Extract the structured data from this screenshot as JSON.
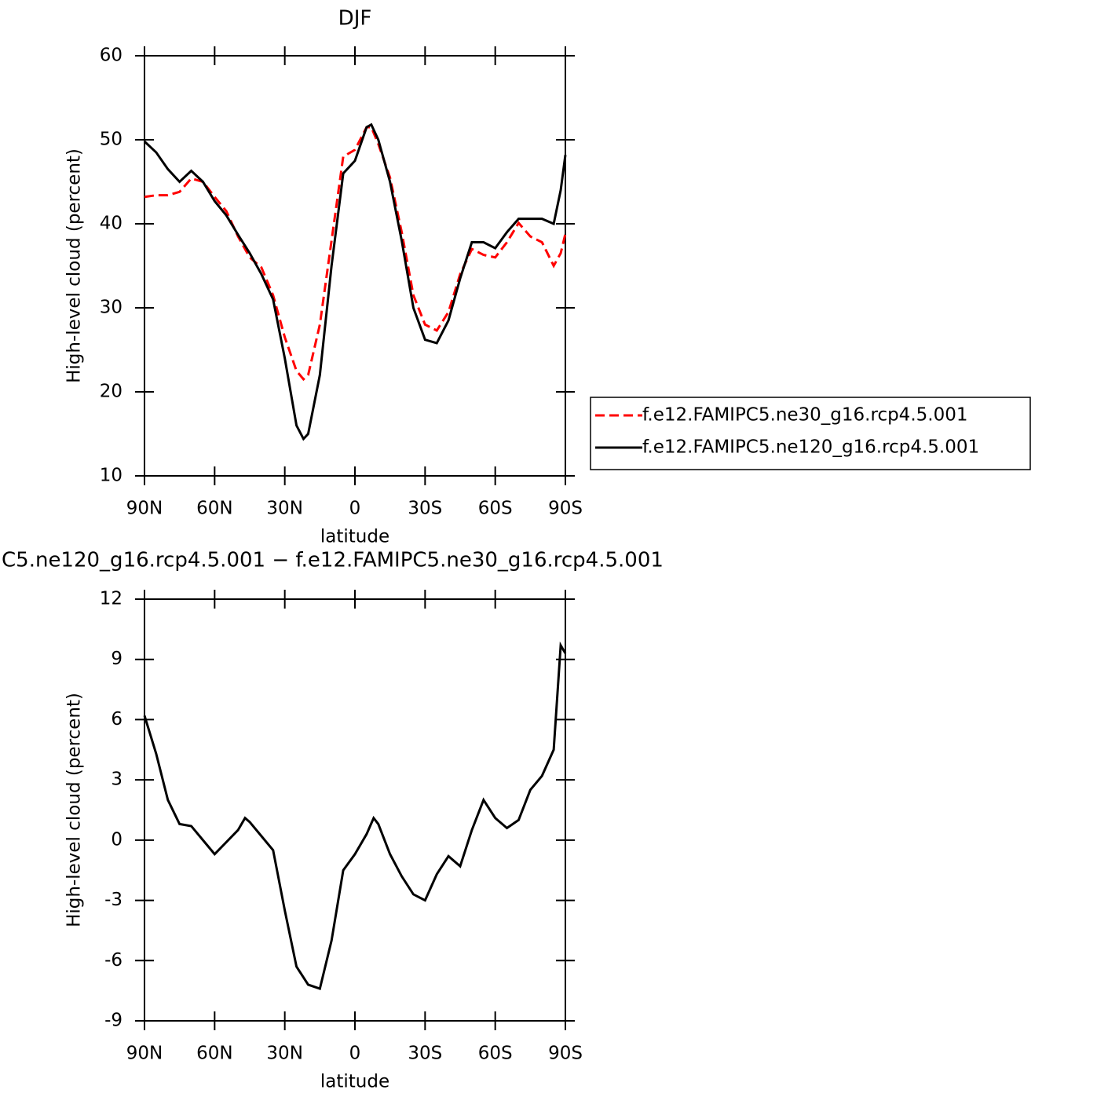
{
  "chart_data": [
    {
      "type": "line",
      "title": "DJF",
      "x_label": "latitude",
      "y_label": "High-level cloud (percent)",
      "x": [
        90,
        85,
        80,
        75,
        70,
        65,
        60,
        55,
        50,
        45,
        40,
        35,
        30,
        25,
        22,
        20,
        15,
        10,
        5,
        0,
        -5,
        -7,
        -10,
        -15,
        -20,
        -25,
        -30,
        -35,
        -40,
        -45,
        -50,
        -55,
        -60,
        -65,
        -70,
        -75,
        -80,
        -85,
        -88,
        -90
      ],
      "series": [
        {
          "name": "f.e12.FAMIPC5.ne30_g16.rcp4.5.001",
          "color": "#ff0000",
          "style": "dashed",
          "values": [
            43.2,
            43.4,
            43.4,
            43.8,
            45.4,
            45,
            43.2,
            41.5,
            38.5,
            36,
            34.8,
            31.5,
            26.5,
            22.5,
            21.5,
            22,
            28,
            38,
            48,
            48.8,
            51.5,
            51.5,
            49.5,
            45.5,
            39,
            31.5,
            28,
            27.3,
            29.5,
            34,
            37,
            36.3,
            36,
            37.8,
            40.1,
            38.5,
            37.8,
            35,
            36.5,
            38.8
          ]
        },
        {
          "name": "f.e12.FAMIPC5.ne120_g16.rcp4.5.001",
          "color": "#000000",
          "style": "solid",
          "values": [
            49.8,
            48.5,
            46.5,
            45,
            46.3,
            45,
            42.7,
            41,
            38.7,
            36.5,
            34,
            31,
            24,
            16,
            14.4,
            15,
            22,
            35,
            46,
            47.5,
            51.5,
            51.8,
            50,
            45,
            38,
            30,
            26.2,
            25.8,
            28.5,
            33.5,
            37.8,
            37.8,
            37.1,
            39,
            40.6,
            40.6,
            40.6,
            40,
            44,
            48.2
          ]
        }
      ],
      "xlim": [
        90,
        -90
      ],
      "xticks": [
        {
          "value": 90,
          "label": "90N"
        },
        {
          "value": 60,
          "label": "60N"
        },
        {
          "value": 30,
          "label": "30N"
        },
        0,
        {
          "value": -30,
          "label": "30S"
        },
        {
          "value": -60,
          "label": "60S"
        },
        {
          "value": -90,
          "label": "90S"
        }
      ],
      "ylim": [
        10,
        60
      ],
      "yticks": [
        10,
        20,
        30,
        40,
        50,
        60
      ],
      "legend": "right"
    },
    {
      "type": "line",
      "title": "C5.ne120_g16.rcp4.5.001 − f.e12.FAMIPC5.ne30_g16.rcp4.5.001",
      "x_label": "latitude",
      "y_label": "High-level cloud (percent)",
      "x": [
        90,
        85,
        80,
        75,
        70,
        65,
        60,
        55,
        50,
        47,
        45,
        40,
        35,
        30,
        25,
        20,
        15,
        10,
        5,
        0,
        -5,
        -8,
        -10,
        -15,
        -20,
        -25,
        -30,
        -35,
        -40,
        -45,
        -50,
        -55,
        -60,
        -65,
        -70,
        -75,
        -80,
        -85,
        -88,
        -90
      ],
      "series": [
        {
          "color": "#000000",
          "style": "solid",
          "values": [
            6.2,
            4.3,
            2,
            0.8,
            0.7,
            0,
            -0.7,
            -0.1,
            0.5,
            1.1,
            0.9,
            0.2,
            -0.5,
            -3.5,
            -6.3,
            -7.2,
            -7.4,
            -5,
            -1.5,
            -0.7,
            0.3,
            1.1,
            0.8,
            -0.7,
            -1.8,
            -2.7,
            -3,
            -1.7,
            -0.8,
            -1.3,
            0.5,
            2,
            1.1,
            0.6,
            1,
            2.5,
            3.2,
            4.5,
            9.7,
            9.3
          ]
        }
      ],
      "xlim": [
        90,
        -90
      ],
      "xticks": [
        {
          "value": 90,
          "label": "90N"
        },
        {
          "value": 60,
          "label": "60N"
        },
        {
          "value": 30,
          "label": "30N"
        },
        0,
        {
          "value": -30,
          "label": "30S"
        },
        {
          "value": -60,
          "label": "60S"
        },
        {
          "value": -90,
          "label": "90S"
        }
      ],
      "ylim": [
        -9,
        12
      ],
      "yticks": [
        -9,
        -6,
        -3,
        0,
        3,
        6,
        9,
        12
      ]
    }
  ]
}
